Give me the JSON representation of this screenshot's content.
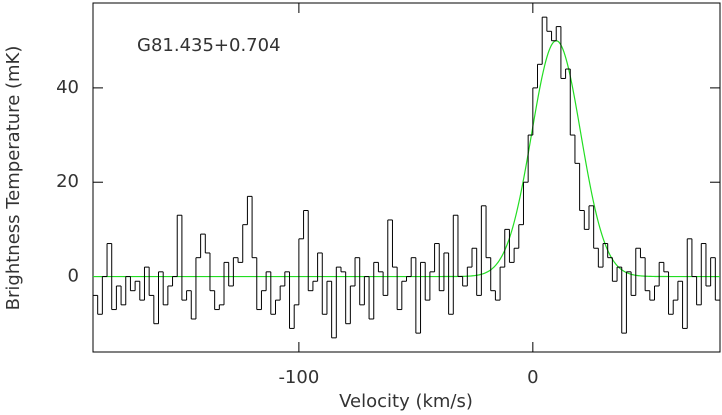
{
  "chart_data": {
    "type": "step",
    "annotation": "G81.435+0.704",
    "x_label": "Velocity (km/s)",
    "y_label": "Brightness Temperature (mK)",
    "xlim": [
      -188,
      80
    ],
    "ylim": [
      -16,
      58
    ],
    "xticks": [
      -100,
      0
    ],
    "yticks": [
      0,
      20,
      40
    ],
    "color": "#000000",
    "x": [
      -187,
      -185,
      -183,
      -181,
      -179,
      -177,
      -175,
      -173,
      -171,
      -169,
      -167,
      -165,
      -163,
      -161,
      -159,
      -157,
      -155,
      -153,
      -151,
      -149,
      -147,
      -145,
      -143,
      -141,
      -139,
      -137,
      -135,
      -133,
      -131,
      -129,
      -127,
      -125,
      -123,
      -121,
      -119,
      -117,
      -115,
      -113,
      -111,
      -109,
      -107,
      -105,
      -103,
      -101,
      -99,
      -97,
      -95,
      -93,
      -91,
      -89,
      -87,
      -85,
      -83,
      -81,
      -79,
      -77,
      -75,
      -73,
      -71,
      -69,
      -67,
      -65,
      -63,
      -61,
      -59,
      -57,
      -55,
      -53,
      -51,
      -49,
      -47,
      -45,
      -43,
      -41,
      -39,
      -37,
      -35,
      -33,
      -31,
      -29,
      -27,
      -25,
      -23,
      -21,
      -19,
      -17,
      -15,
      -13,
      -11,
      -9,
      -7,
      -5,
      -3,
      -1,
      1,
      3,
      5,
      7,
      9,
      11,
      13,
      15,
      17,
      19,
      21,
      23,
      25,
      27,
      29,
      31,
      33,
      35,
      37,
      39,
      41,
      43,
      45,
      47,
      49,
      51,
      53,
      55,
      57,
      59,
      61,
      63,
      65,
      67,
      69,
      71,
      73,
      75,
      77,
      79
    ],
    "values": [
      -4,
      -8,
      0,
      7,
      -7,
      -2,
      -6,
      0,
      -3,
      -1,
      -5,
      2,
      -4,
      -10,
      1,
      -6,
      -2,
      0,
      13,
      -5,
      -3,
      -9,
      4,
      9,
      5,
      -3,
      -7,
      -6,
      3,
      -2,
      4,
      3,
      11,
      17,
      4,
      -7,
      -3,
      1,
      -8,
      -5,
      -2,
      1,
      -11,
      -6,
      8,
      14,
      -3,
      -1,
      5,
      -8,
      -1,
      -13,
      2,
      1,
      -10,
      -2,
      4,
      -6,
      0,
      -9,
      3,
      1,
      -4,
      12,
      2,
      -7,
      -1,
      0,
      4,
      -12,
      3,
      -5,
      1,
      7,
      -3,
      5,
      -8,
      13,
      0,
      -2,
      2,
      6,
      -4,
      15,
      4,
      -3,
      -5,
      2,
      10,
      3,
      6,
      11,
      20,
      30,
      40,
      45,
      55,
      52,
      50,
      53,
      42,
      44,
      30,
      24,
      14,
      10,
      15,
      6,
      2,
      7,
      4,
      -1,
      2,
      -12,
      1,
      -4,
      6,
      4,
      -3,
      -5,
      -2,
      3,
      1,
      -8,
      -5,
      -1,
      -11,
      8,
      0,
      -6,
      7,
      -2,
      4,
      -5
    ],
    "fit": {
      "amplitude": 50,
      "center": 10,
      "sigma": 10.5,
      "color": "#22dd22"
    }
  }
}
